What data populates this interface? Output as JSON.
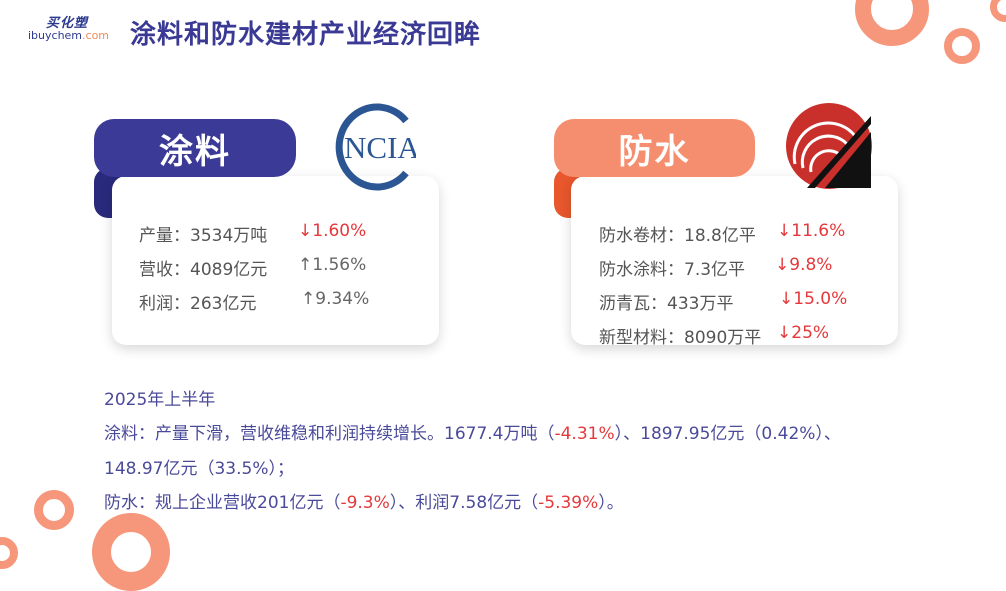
{
  "header": {
    "logo_cn": "买化塑",
    "logo_en_main": "ibuychem",
    "logo_en_suffix": ".com",
    "title": "涂料和防水建材产业经济回眸"
  },
  "coatings_card": {
    "banner": "涂料",
    "logo_text": "NCIA",
    "rows": [
      {
        "label": "产量：3534万吨",
        "arrow": "↓",
        "change": "1.60%",
        "direction": "down"
      },
      {
        "label": "营收：4089亿元",
        "arrow": "↑",
        "change": "1.56%",
        "direction": "up"
      },
      {
        "label": "利润：263亿元",
        "arrow": "↑",
        "change": "9.34%",
        "direction": "up"
      }
    ]
  },
  "waterproof_card": {
    "banner": "防水",
    "rows": [
      {
        "label": "防水卷材：18.8亿平",
        "arrow": "↓",
        "change": "11.6%",
        "direction": "down"
      },
      {
        "label": "防水涂料：7.3亿平",
        "arrow": "↓",
        "change": "9.8%",
        "direction": "down"
      },
      {
        "label": "沥青瓦：433万平",
        "arrow": "↓",
        "change": "15.0%",
        "direction": "down"
      },
      {
        "label": "新型材料：8090万平",
        "arrow": "↓",
        "change": "25%",
        "direction": "down"
      }
    ]
  },
  "summary": {
    "period": "2025年上半年",
    "coatings_line1_a": "涂料：产量下滑，营收维稳和利润持续增长。1677.4万吨（",
    "coatings_line1_b": "-4.31%",
    "coatings_line1_c": "）、1897.95亿元（0.42%）、",
    "coatings_line2": "148.97亿元（33.5%）；",
    "water_a": "防水：规上企业营收201亿元（",
    "water_b": "-9.3%",
    "water_c": "）、利润7.58亿元（",
    "water_d": "-5.39%",
    "water_e": "）。"
  },
  "colors": {
    "brand_navy": "#3b3a96",
    "accent_orange": "#f58e6e",
    "decrease_red": "#e5383b"
  }
}
